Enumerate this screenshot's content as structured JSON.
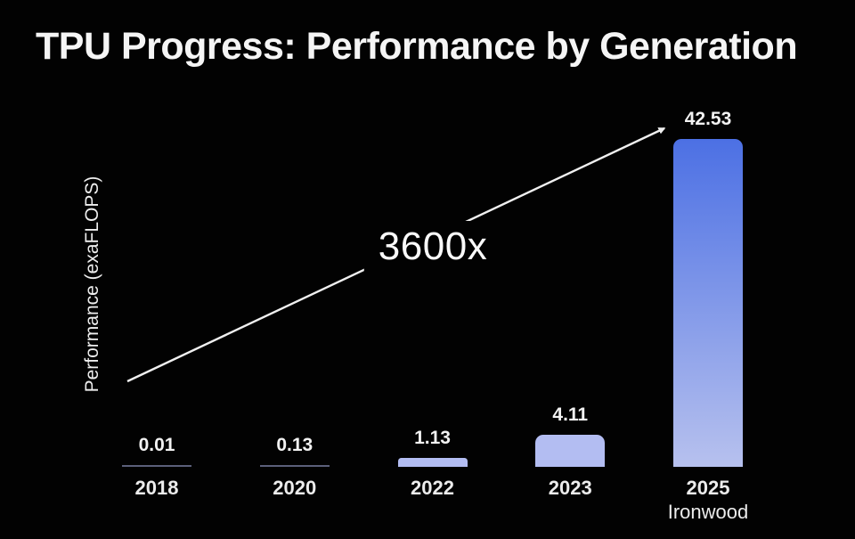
{
  "title": "TPU Progress: Performance by Generation",
  "chart_data": {
    "type": "bar",
    "title": "TPU Progress: Performance by Generation",
    "xlabel": "",
    "ylabel": "Performance (exaFLOPS)",
    "categories": [
      "2018",
      "2020",
      "2022",
      "2023",
      "2025"
    ],
    "category_sublabels": [
      "",
      "",
      "",
      "",
      "Ironwood"
    ],
    "values": [
      0.01,
      0.13,
      1.13,
      4.11,
      42.53
    ],
    "value_labels": [
      "0.01",
      "0.13",
      "1.13",
      "4.11",
      "42.53"
    ],
    "annotation": "3600x",
    "ylim": [
      0,
      45
    ],
    "grid": false,
    "legend": "none",
    "colors": {
      "background": "#020202",
      "text": "#f2f2f2",
      "bar_fill": "#b3bdf2",
      "tiny_bar_line": "#5b5f7a",
      "tallest_bar_gradient_top": "#4c70e4",
      "tallest_bar_gradient_bottom": "#b7c1ee",
      "arrow": "#f0f0f0"
    }
  }
}
